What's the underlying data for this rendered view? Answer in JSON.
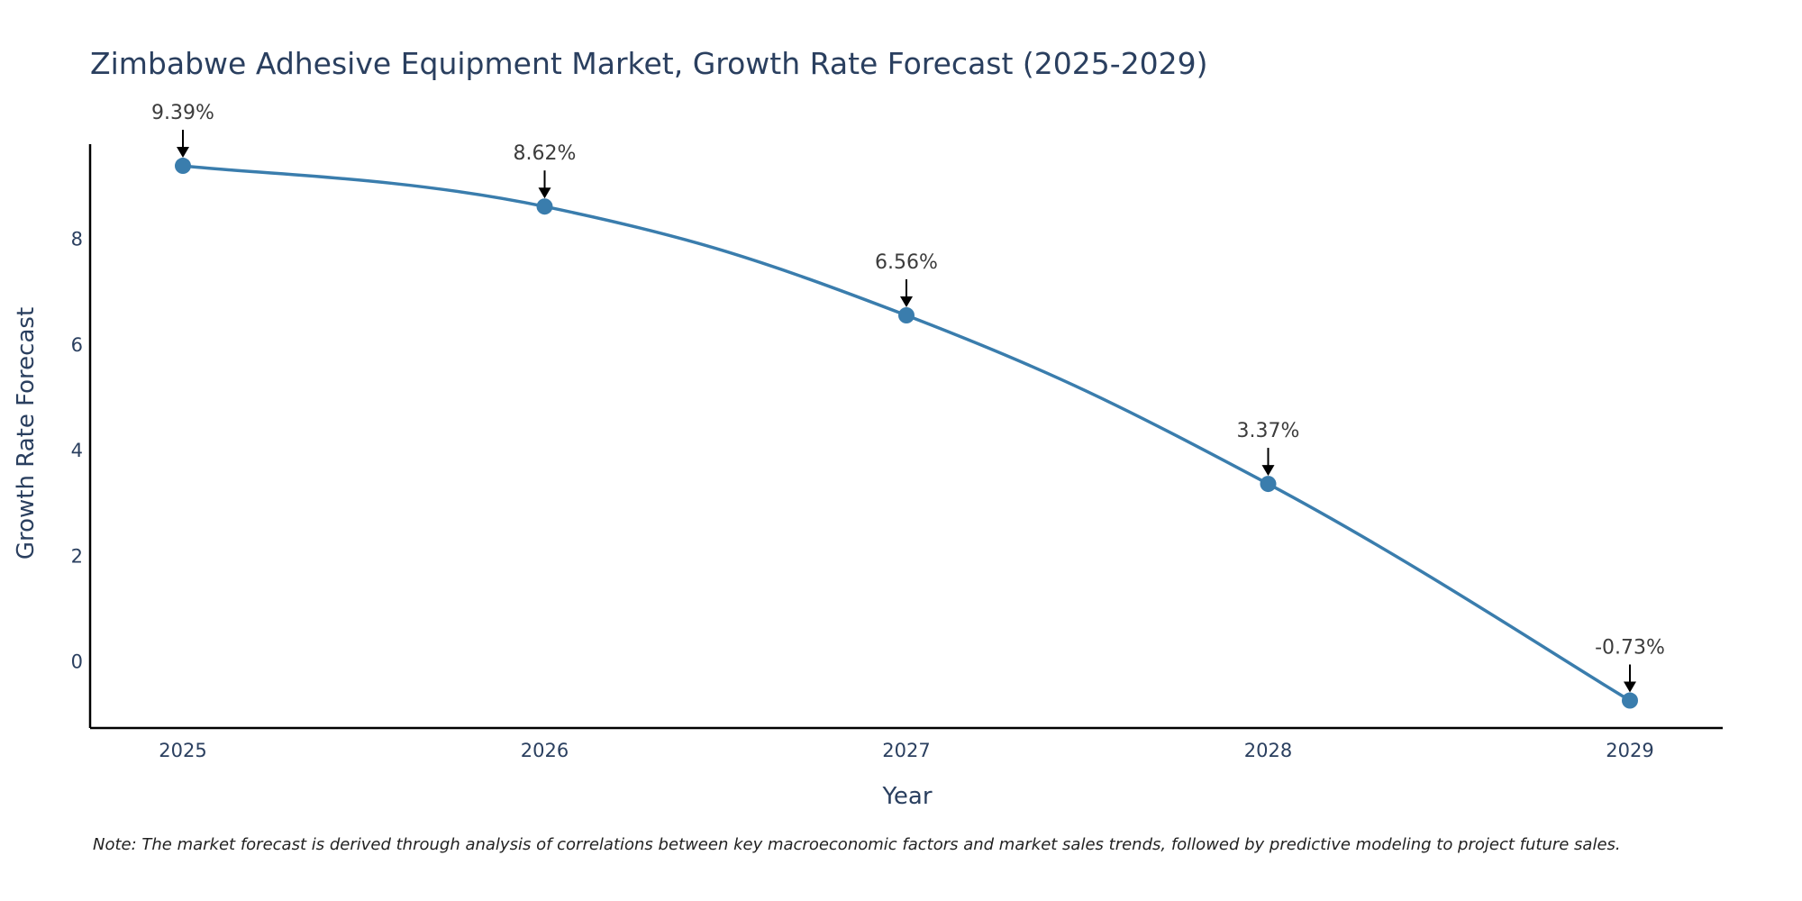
{
  "chart_data": {
    "type": "line",
    "title": "Zimbabwe Adhesive Equipment Market, Growth Rate Forecast (2025-2029)",
    "xlabel": "Year",
    "ylabel": "Growth Rate Forecast",
    "x": [
      "2025",
      "2026",
      "2027",
      "2028",
      "2029"
    ],
    "values": [
      9.39,
      8.62,
      6.56,
      3.37,
      -0.73
    ],
    "labels": [
      "9.39%",
      "8.62%",
      "6.56%",
      "3.37%",
      "-0.73%"
    ],
    "y_ticks": [
      0,
      2,
      4,
      6,
      8
    ],
    "ylim": [
      -1.25,
      9.8
    ],
    "grid": false,
    "line_color": "#3a7dad",
    "marker_color": "#3a7dad",
    "note": "Note: The market forecast is derived through analysis of correlations between key macroeconomic factors and market sales trends, followed by predictive modeling to project future sales."
  }
}
